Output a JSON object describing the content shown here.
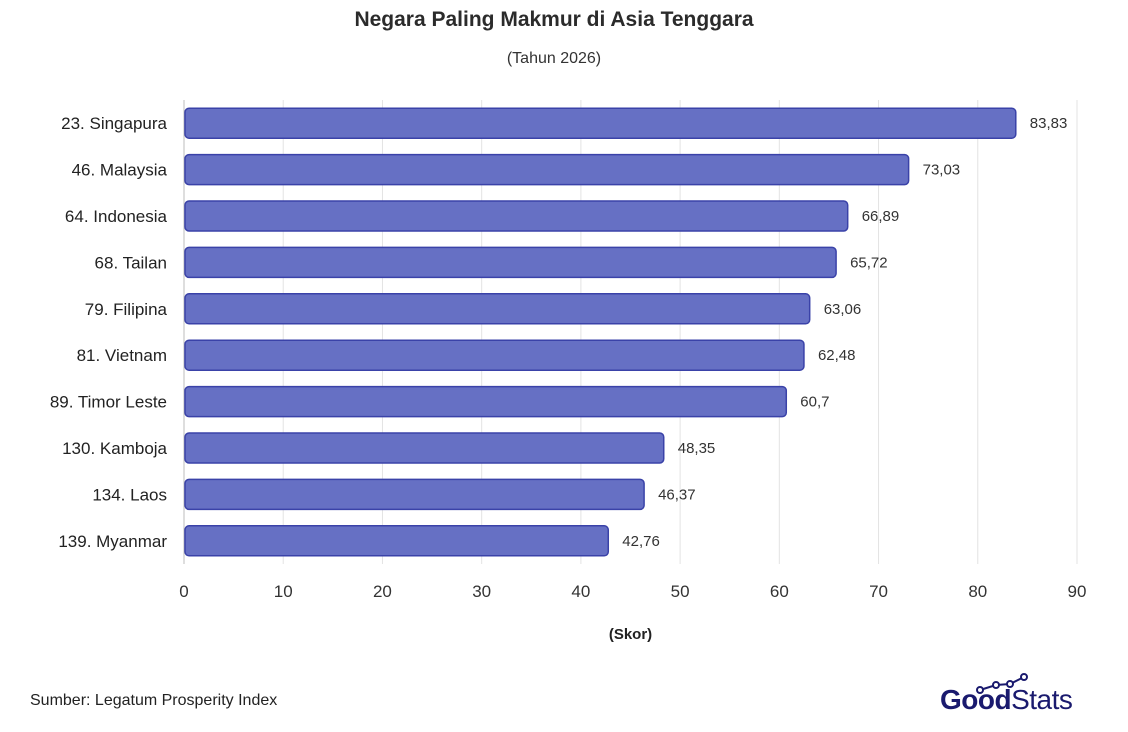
{
  "header": {
    "title": "Negara Paling Makmur di Asia Tenggara",
    "subtitle": "(Tahun 2026)"
  },
  "footer": {
    "source": "Sumber: Legatum Prosperity Index",
    "logo_part1": "Good",
    "logo_part2": "Stats"
  },
  "colors": {
    "bar_fill": "#6670c4",
    "bar_stroke": "#3a42a8",
    "grid": "#e3e3e3",
    "logo": "#1a1a6e"
  },
  "chart_data": {
    "type": "bar",
    "orientation": "horizontal",
    "title": "Negara Paling Makmur di Asia Tenggara",
    "subtitle": "(Tahun 2026)",
    "xlabel": "(Skor)",
    "ylabel": "",
    "xlim": [
      0,
      90
    ],
    "xticks": [
      "0",
      "10",
      "20",
      "30",
      "40",
      "50",
      "60",
      "70",
      "80",
      "90"
    ],
    "grid": true,
    "legend": "none",
    "categories": [
      "23. Singapura",
      "46. Malaysia",
      "64. Indonesia",
      "68. Tailan",
      "79. Filipina",
      "81. Vietnam",
      "89. Timor Leste",
      "130. Kamboja",
      "134. Laos",
      "139. Myanmar"
    ],
    "values": [
      83.83,
      73.03,
      66.89,
      65.72,
      63.06,
      62.48,
      60.7,
      48.35,
      46.37,
      42.76
    ],
    "value_labels": [
      "83,83",
      "73,03",
      "66,89",
      "65,72",
      "63,06",
      "62,48",
      "60,7",
      "48,35",
      "46,37",
      "42,76"
    ]
  }
}
